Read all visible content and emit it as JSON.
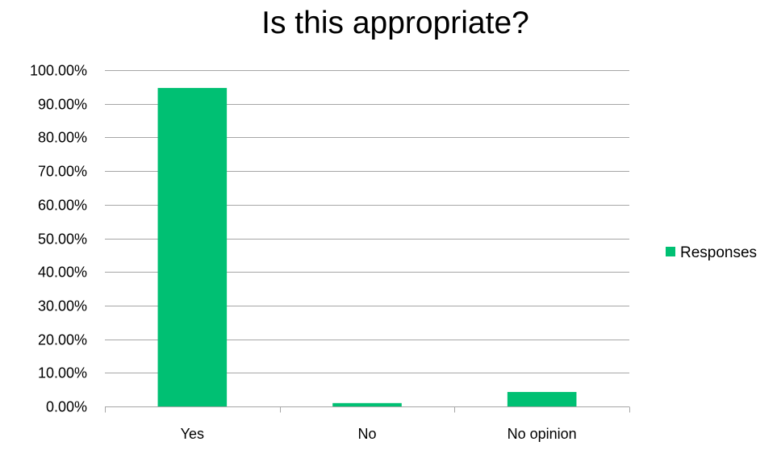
{
  "chart_data": {
    "type": "bar",
    "title": "Is this appropriate?",
    "xlabel": "",
    "ylabel": "",
    "categories": [
      "Yes",
      "No",
      "No opinion"
    ],
    "series": [
      {
        "name": "Responses",
        "values": [
          0.947,
          0.01,
          0.043
        ],
        "color": "#00c073"
      }
    ],
    "ylim": [
      0,
      1
    ],
    "y_ticks": [
      {
        "value": 0.0,
        "label": "0.00%"
      },
      {
        "value": 0.1,
        "label": "10.00%"
      },
      {
        "value": 0.2,
        "label": "20.00%"
      },
      {
        "value": 0.3,
        "label": "30.00%"
      },
      {
        "value": 0.4,
        "label": "40.00%"
      },
      {
        "value": 0.5,
        "label": "50.00%"
      },
      {
        "value": 0.6,
        "label": "60.00%"
      },
      {
        "value": 0.7,
        "label": "70.00%"
      },
      {
        "value": 0.8,
        "label": "80.00%"
      },
      {
        "value": 0.9,
        "label": "90.00%"
      },
      {
        "value": 1.0,
        "label": "100.00%"
      }
    ],
    "grid": true,
    "legend_position": "right",
    "colors": {
      "gridline": "#a6a6a6",
      "axis": "#a6a6a6",
      "text": "#000000"
    }
  }
}
